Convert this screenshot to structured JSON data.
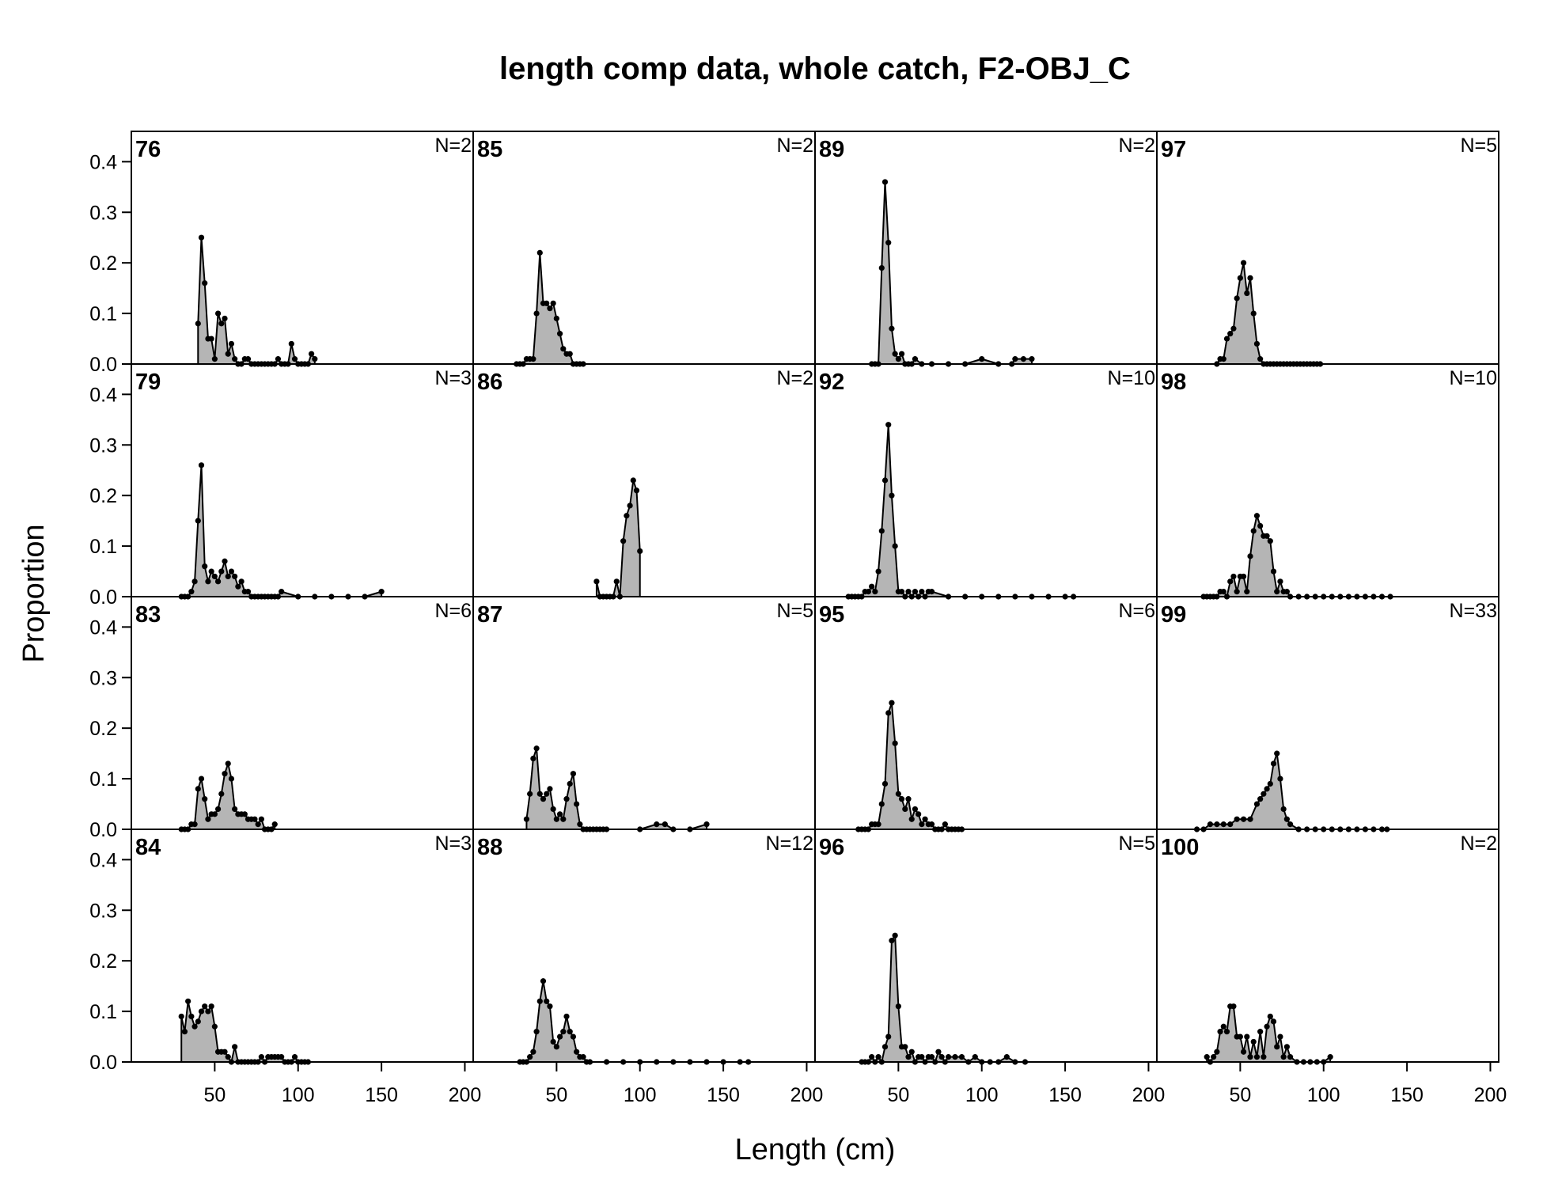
{
  "chart_data": {
    "type": "area",
    "title": "length comp data, whole catch, F2-OBJ_C",
    "xlabel": "Length (cm)",
    "ylabel": "Proportion",
    "xlim": [
      0,
      205
    ],
    "ylim": [
      0,
      0.46
    ],
    "xticks": [
      50,
      100,
      150,
      200
    ],
    "yticks": [
      0.0,
      0.1,
      0.2,
      0.3,
      0.4
    ],
    "ytick_labels": [
      "0.0",
      "0.1",
      "0.2",
      "0.3",
      "0.4"
    ],
    "layout": "4 rows x 4 columns, column-major",
    "panels": [
      {
        "label": "76",
        "n": "N=2",
        "x": [
          40,
          42,
          44,
          46,
          48,
          50,
          52,
          54,
          56,
          58,
          60,
          62,
          64,
          66,
          68,
          70,
          72,
          74,
          76,
          78,
          80,
          82,
          84,
          86,
          88,
          90,
          92,
          94,
          96,
          98,
          100,
          102,
          104,
          106,
          108,
          110
        ],
        "y": [
          0.08,
          0.25,
          0.16,
          0.05,
          0.05,
          0.01,
          0.1,
          0.08,
          0.09,
          0.02,
          0.04,
          0.01,
          0.0,
          0.0,
          0.01,
          0.01,
          0.0,
          0.0,
          0.0,
          0.0,
          0.0,
          0.0,
          0.0,
          0.0,
          0.01,
          0.0,
          0.0,
          0.0,
          0.04,
          0.01,
          0.0,
          0.0,
          0.0,
          0.0,
          0.02,
          0.01
        ]
      },
      {
        "label": "79",
        "n": "N=3",
        "x": [
          30,
          32,
          34,
          36,
          38,
          40,
          42,
          44,
          46,
          48,
          50,
          52,
          54,
          56,
          58,
          60,
          62,
          64,
          66,
          68,
          70,
          72,
          74,
          76,
          78,
          80,
          82,
          84,
          86,
          88,
          90,
          100,
          110,
          120,
          130,
          140,
          150
        ],
        "y": [
          0.0,
          0.0,
          0.0,
          0.01,
          0.03,
          0.15,
          0.26,
          0.06,
          0.03,
          0.05,
          0.04,
          0.03,
          0.05,
          0.07,
          0.04,
          0.05,
          0.04,
          0.02,
          0.03,
          0.01,
          0.01,
          0.0,
          0.0,
          0.0,
          0.0,
          0.0,
          0.0,
          0.0,
          0.0,
          0.0,
          0.01,
          0.0,
          0.0,
          0.0,
          0.0,
          0.0,
          0.01
        ]
      },
      {
        "label": "83",
        "n": "N=6",
        "x": [
          30,
          32,
          34,
          36,
          38,
          40,
          42,
          44,
          46,
          48,
          50,
          52,
          54,
          56,
          58,
          60,
          62,
          64,
          66,
          68,
          70,
          72,
          74,
          76,
          78,
          80,
          82,
          84,
          86
        ],
        "y": [
          0.0,
          0.0,
          0.0,
          0.01,
          0.01,
          0.08,
          0.1,
          0.06,
          0.02,
          0.03,
          0.03,
          0.04,
          0.07,
          0.11,
          0.13,
          0.1,
          0.04,
          0.03,
          0.03,
          0.03,
          0.02,
          0.02,
          0.02,
          0.01,
          0.02,
          0.0,
          0.0,
          0.0,
          0.01
        ]
      },
      {
        "label": "84",
        "n": "N=3",
        "x": [
          30,
          32,
          34,
          36,
          38,
          40,
          42,
          44,
          46,
          48,
          50,
          52,
          54,
          56,
          58,
          60,
          62,
          64,
          66,
          68,
          70,
          72,
          74,
          76,
          78,
          80,
          82,
          84,
          86,
          88,
          90,
          92,
          94,
          96,
          98,
          100,
          102,
          104,
          106
        ],
        "y": [
          0.09,
          0.06,
          0.12,
          0.09,
          0.07,
          0.08,
          0.1,
          0.11,
          0.1,
          0.11,
          0.07,
          0.02,
          0.02,
          0.02,
          0.01,
          0.0,
          0.03,
          0.0,
          0.0,
          0.0,
          0.0,
          0.0,
          0.0,
          0.0,
          0.01,
          0.0,
          0.01,
          0.01,
          0.01,
          0.01,
          0.01,
          0.0,
          0.0,
          0.0,
          0.01,
          0.0,
          0.0,
          0.0,
          0.0
        ]
      },
      {
        "label": "85",
        "n": "N=2",
        "x": [
          26,
          28,
          30,
          32,
          34,
          36,
          38,
          40,
          42,
          44,
          46,
          48,
          50,
          52,
          54,
          56,
          58,
          60,
          62,
          64,
          66
        ],
        "y": [
          0.0,
          0.0,
          0.0,
          0.01,
          0.01,
          0.01,
          0.1,
          0.22,
          0.12,
          0.12,
          0.11,
          0.12,
          0.09,
          0.06,
          0.03,
          0.02,
          0.02,
          0.0,
          0.0,
          0.0,
          0.0
        ]
      },
      {
        "label": "86",
        "n": "N=2",
        "x": [
          74,
          76,
          78,
          80,
          82,
          84,
          86,
          88,
          90,
          92,
          94,
          96,
          98,
          100
        ],
        "y": [
          0.03,
          0.0,
          0.0,
          0.0,
          0.0,
          0.0,
          0.03,
          0.0,
          0.11,
          0.16,
          0.18,
          0.23,
          0.21,
          0.09
        ]
      },
      {
        "label": "87",
        "n": "N=5",
        "x": [
          32,
          34,
          36,
          38,
          40,
          42,
          44,
          46,
          48,
          50,
          52,
          54,
          56,
          58,
          60,
          62,
          64,
          66,
          68,
          70,
          72,
          74,
          76,
          78,
          80,
          100,
          110,
          115,
          120,
          130,
          140
        ],
        "y": [
          0.02,
          0.07,
          0.14,
          0.16,
          0.07,
          0.06,
          0.07,
          0.08,
          0.04,
          0.02,
          0.03,
          0.02,
          0.06,
          0.09,
          0.11,
          0.05,
          0.01,
          0.0,
          0.0,
          0.0,
          0.0,
          0.0,
          0.0,
          0.0,
          0.0,
          0.0,
          0.01,
          0.01,
          0.0,
          0.0,
          0.01
        ]
      },
      {
        "label": "88",
        "n": "N=12",
        "x": [
          28,
          30,
          32,
          34,
          36,
          38,
          40,
          42,
          44,
          46,
          48,
          50,
          52,
          54,
          56,
          58,
          60,
          62,
          64,
          66,
          68,
          70,
          80,
          90,
          100,
          110,
          120,
          130,
          140,
          150,
          160,
          165
        ],
        "y": [
          0.0,
          0.0,
          0.0,
          0.01,
          0.02,
          0.06,
          0.12,
          0.16,
          0.12,
          0.11,
          0.04,
          0.03,
          0.05,
          0.06,
          0.09,
          0.06,
          0.05,
          0.02,
          0.01,
          0.01,
          0.0,
          0.0,
          0.0,
          0.0,
          0.0,
          0.0,
          0.0,
          0.0,
          0.0,
          0.0,
          0.0,
          0.0
        ]
      },
      {
        "label": "89",
        "n": "N=2",
        "x": [
          34,
          36,
          38,
          40,
          42,
          44,
          46,
          48,
          50,
          52,
          54,
          56,
          58,
          60,
          64,
          70,
          80,
          90,
          100,
          110,
          118,
          120,
          125,
          130
        ],
        "y": [
          0.0,
          0.0,
          0.0,
          0.19,
          0.36,
          0.24,
          0.07,
          0.02,
          0.01,
          0.02,
          0.0,
          0.0,
          0.0,
          0.01,
          0.0,
          0.0,
          0.0,
          0.0,
          0.01,
          0.0,
          0.0,
          0.01,
          0.01,
          0.01
        ]
      },
      {
        "label": "92",
        "n": "N=10",
        "x": [
          20,
          22,
          24,
          26,
          28,
          30,
          32,
          34,
          36,
          38,
          40,
          42,
          44,
          46,
          48,
          50,
          52,
          54,
          56,
          58,
          60,
          62,
          64,
          66,
          68,
          70,
          80,
          90,
          100,
          110,
          120,
          130,
          140,
          150,
          155
        ],
        "y": [
          0.0,
          0.0,
          0.0,
          0.0,
          0.0,
          0.01,
          0.01,
          0.02,
          0.01,
          0.05,
          0.13,
          0.23,
          0.34,
          0.2,
          0.1,
          0.01,
          0.01,
          0.0,
          0.01,
          0.0,
          0.01,
          0.0,
          0.01,
          0.0,
          0.01,
          0.01,
          0.0,
          0.0,
          0.0,
          0.0,
          0.0,
          0.0,
          0.0,
          0.0,
          0.0
        ]
      },
      {
        "label": "95",
        "n": "N=6",
        "x": [
          26,
          28,
          30,
          32,
          34,
          36,
          38,
          40,
          42,
          44,
          46,
          48,
          50,
          52,
          54,
          56,
          58,
          60,
          62,
          64,
          66,
          68,
          70,
          72,
          74,
          76,
          78,
          80,
          82,
          84,
          86,
          88
        ],
        "y": [
          0.0,
          0.0,
          0.0,
          0.0,
          0.01,
          0.01,
          0.01,
          0.05,
          0.09,
          0.23,
          0.25,
          0.17,
          0.07,
          0.06,
          0.04,
          0.06,
          0.02,
          0.04,
          0.03,
          0.01,
          0.02,
          0.01,
          0.01,
          0.0,
          0.0,
          0.0,
          0.01,
          0.0,
          0.0,
          0.0,
          0.0,
          0.0
        ]
      },
      {
        "label": "96",
        "n": "N=5",
        "x": [
          28,
          30,
          32,
          34,
          36,
          38,
          40,
          42,
          44,
          46,
          48,
          50,
          52,
          54,
          56,
          58,
          60,
          62,
          64,
          66,
          68,
          70,
          72,
          74,
          76,
          78,
          80,
          84,
          88,
          92,
          96,
          100,
          105,
          110,
          115,
          120,
          126
        ],
        "y": [
          0.0,
          0.0,
          0.0,
          0.01,
          0.0,
          0.01,
          0.0,
          0.03,
          0.05,
          0.24,
          0.25,
          0.11,
          0.03,
          0.03,
          0.01,
          0.02,
          0.0,
          0.01,
          0.01,
          0.0,
          0.01,
          0.01,
          0.0,
          0.02,
          0.01,
          0.0,
          0.01,
          0.01,
          0.01,
          0.0,
          0.01,
          0.0,
          0.0,
          0.0,
          0.01,
          0.0,
          0.0
        ]
      },
      {
        "label": "97",
        "n": "N=5",
        "x": [
          36,
          38,
          40,
          42,
          44,
          46,
          48,
          50,
          52,
          54,
          56,
          58,
          60,
          62,
          64,
          66,
          68,
          70,
          72,
          74,
          76,
          78,
          80,
          82,
          84,
          86,
          88,
          90,
          92,
          94,
          96,
          98
        ],
        "y": [
          0.0,
          0.01,
          0.01,
          0.05,
          0.06,
          0.07,
          0.13,
          0.17,
          0.2,
          0.14,
          0.17,
          0.1,
          0.04,
          0.01,
          0.0,
          0.0,
          0.0,
          0.0,
          0.0,
          0.0,
          0.0,
          0.0,
          0.0,
          0.0,
          0.0,
          0.0,
          0.0,
          0.0,
          0.0,
          0.0,
          0.0,
          0.0
        ]
      },
      {
        "label": "98",
        "n": "N=10",
        "x": [
          28,
          30,
          32,
          34,
          36,
          38,
          40,
          42,
          44,
          46,
          48,
          50,
          52,
          54,
          56,
          58,
          60,
          62,
          64,
          66,
          68,
          70,
          72,
          74,
          76,
          78,
          80,
          85,
          90,
          95,
          100,
          105,
          110,
          115,
          120,
          125,
          130,
          135,
          140
        ],
        "y": [
          0.0,
          0.0,
          0.0,
          0.0,
          0.0,
          0.01,
          0.01,
          0.0,
          0.03,
          0.04,
          0.01,
          0.04,
          0.04,
          0.01,
          0.08,
          0.13,
          0.16,
          0.14,
          0.12,
          0.12,
          0.11,
          0.05,
          0.01,
          0.03,
          0.01,
          0.01,
          0.0,
          0.0,
          0.0,
          0.0,
          0.0,
          0.0,
          0.0,
          0.0,
          0.0,
          0.0,
          0.0,
          0.0,
          0.0
        ]
      },
      {
        "label": "99",
        "n": "N=33",
        "x": [
          24,
          28,
          32,
          36,
          40,
          44,
          48,
          52,
          56,
          60,
          62,
          64,
          66,
          68,
          70,
          72,
          74,
          76,
          78,
          80,
          85,
          90,
          95,
          100,
          105,
          110,
          115,
          120,
          125,
          130,
          135,
          138
        ],
        "y": [
          0.0,
          0.0,
          0.01,
          0.01,
          0.01,
          0.01,
          0.02,
          0.02,
          0.02,
          0.05,
          0.06,
          0.07,
          0.08,
          0.09,
          0.13,
          0.15,
          0.1,
          0.04,
          0.02,
          0.01,
          0.0,
          0.0,
          0.0,
          0.0,
          0.0,
          0.0,
          0.0,
          0.0,
          0.0,
          0.0,
          0.0,
          0.0
        ]
      },
      {
        "label": "100",
        "n": "N=2",
        "x": [
          30,
          32,
          34,
          36,
          38,
          40,
          42,
          44,
          46,
          48,
          50,
          52,
          54,
          56,
          58,
          60,
          62,
          64,
          66,
          68,
          70,
          72,
          74,
          76,
          78,
          80,
          84,
          88,
          92,
          96,
          100,
          104
        ],
        "y": [
          0.01,
          0.0,
          0.01,
          0.02,
          0.06,
          0.07,
          0.06,
          0.11,
          0.11,
          0.05,
          0.05,
          0.02,
          0.05,
          0.01,
          0.04,
          0.01,
          0.06,
          0.01,
          0.07,
          0.09,
          0.08,
          0.03,
          0.05,
          0.01,
          0.03,
          0.01,
          0.0,
          0.0,
          0.0,
          0.0,
          0.0,
          0.01
        ]
      }
    ]
  }
}
